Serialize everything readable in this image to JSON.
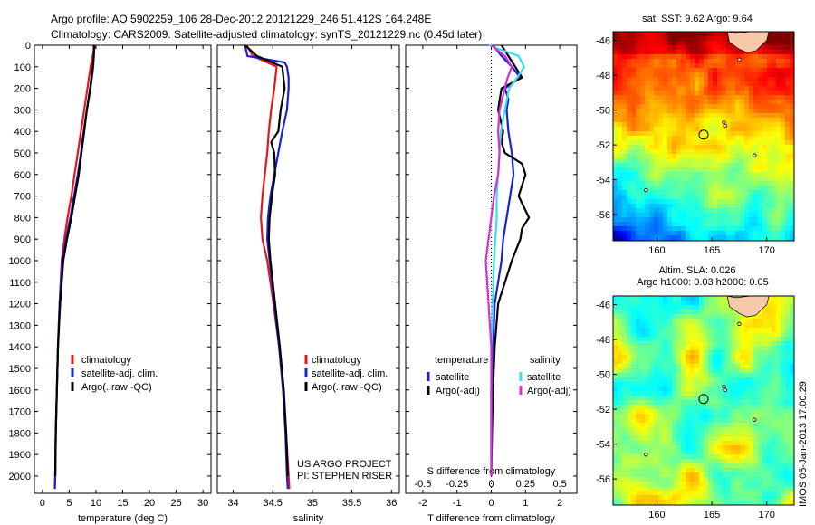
{
  "header": {
    "title_line1": "Argo profile: AO 5902259_106 28-Dec-2012 20121229_246 51.412S 164.248E",
    "title_line2": "Climatology: CARS2009. Satellite-adjusted climatology: synTS_20121229.nc (0.45d later)"
  },
  "colors": {
    "climatology": "#e8141b",
    "satellite": "#1b22cf",
    "argo": "#000000",
    "salinity_satellite": "#33e0e8",
    "salinity_argo": "#d62fd6"
  },
  "chart_data": [
    {
      "type": "line",
      "name": "temperature-profile",
      "xlabel": "temperature (deg C)",
      "ylabel": "",
      "xlim": [
        -1.5,
        31.5
      ],
      "ylim": [
        2080,
        0
      ],
      "xticks": [
        0,
        5,
        10,
        15,
        20,
        25,
        30
      ],
      "yticks": [
        0,
        100,
        200,
        300,
        400,
        500,
        600,
        700,
        800,
        900,
        1000,
        1100,
        1200,
        1300,
        1400,
        1500,
        1600,
        1700,
        1800,
        1900,
        2000
      ],
      "legend": [
        "climatology",
        "satellite-adj. clim.",
        "Argo(..raw -QC)"
      ],
      "series": [
        {
          "name": "climatology",
          "color_key": "climatology",
          "y": [
            0,
            100,
            200,
            300,
            400,
            500,
            600,
            700,
            800,
            900,
            1000,
            1200,
            1400,
            1600,
            1800,
            2000,
            2060
          ],
          "x": [
            9.8,
            9.0,
            8.4,
            7.8,
            7.2,
            6.6,
            6.0,
            5.4,
            4.7,
            4.1,
            3.6,
            3.2,
            2.9,
            2.7,
            2.5,
            2.4,
            2.3
          ]
        },
        {
          "name": "satellite-adj. clim.",
          "color_key": "satellite",
          "y": [
            0,
            100,
            200,
            300,
            400,
            500,
            600,
            700,
            800,
            900,
            1000,
            1200,
            1400,
            1600,
            1800,
            2000,
            2060
          ],
          "x": [
            9.7,
            9.5,
            9.0,
            8.3,
            7.7,
            7.2,
            6.6,
            5.9,
            5.2,
            4.4,
            3.7,
            3.2,
            2.9,
            2.7,
            2.5,
            2.4,
            2.3
          ]
        },
        {
          "name": "Argo(..raw -QC)",
          "color_key": "argo",
          "y": [
            0,
            50,
            100,
            200,
            300,
            400,
            500,
            600,
            700,
            800,
            900,
            1000,
            1200,
            1400,
            1600,
            1800,
            2000
          ],
          "x": [
            9.6,
            9.6,
            9.4,
            8.9,
            8.3,
            7.8,
            7.3,
            6.8,
            6.1,
            5.4,
            4.6,
            3.9,
            3.3,
            2.9,
            2.7,
            2.5,
            2.4
          ]
        }
      ]
    },
    {
      "type": "line",
      "name": "salinity-profile",
      "xlabel": "salinity",
      "ylabel": "",
      "xlim": [
        33.8,
        36.1
      ],
      "ylim": [
        2080,
        0
      ],
      "xticks": [
        34,
        34.5,
        35,
        35.5,
        36
      ],
      "legend": [
        "climatology",
        "satellite-adj. clim.",
        "Argo(..raw -QC)"
      ],
      "annotation": [
        "US ARGO PROJECT",
        "PI: STEPHEN RISER"
      ],
      "series": [
        {
          "name": "climatology",
          "color_key": "climatology",
          "y": [
            0,
            50,
            100,
            200,
            300,
            400,
            500,
            600,
            700,
            800,
            900,
            1000,
            1200,
            1400,
            1600,
            1800,
            2000,
            2060
          ],
          "x": [
            34.17,
            34.25,
            34.55,
            34.52,
            34.48,
            34.45,
            34.43,
            34.4,
            34.37,
            34.35,
            34.37,
            34.43,
            34.51,
            34.58,
            34.63,
            34.67,
            34.7,
            34.71
          ]
        },
        {
          "name": "satellite-adj. clim.",
          "color_key": "satellite",
          "y": [
            0,
            50,
            80,
            100,
            150,
            200,
            300,
            400,
            500,
            600,
            700,
            800,
            900,
            1000,
            1200,
            1400,
            1600,
            1800,
            2000,
            2060
          ],
          "x": [
            34.15,
            34.18,
            34.65,
            34.68,
            34.7,
            34.7,
            34.68,
            34.62,
            34.57,
            34.52,
            34.47,
            34.44,
            34.43,
            34.46,
            34.52,
            34.58,
            34.63,
            34.66,
            34.68,
            34.69
          ]
        },
        {
          "name": "Argo(..raw -QC)",
          "color_key": "argo",
          "y": [
            0,
            50,
            100,
            200,
            300,
            400,
            450,
            500,
            600,
            700,
            800,
            900,
            1000,
            1200,
            1400,
            1600,
            1800,
            2000
          ],
          "x": [
            34.15,
            34.3,
            34.62,
            34.65,
            34.6,
            34.57,
            34.48,
            34.52,
            34.53,
            34.49,
            34.46,
            34.45,
            34.47,
            34.53,
            34.59,
            34.64,
            34.67,
            34.69
          ]
        }
      ]
    },
    {
      "type": "line",
      "name": "difference-profile",
      "xlabel": "T difference from climatology",
      "x2label": "S difference from climatology",
      "xlim": [
        -2.5,
        2.5
      ],
      "ylim": [
        2080,
        0
      ],
      "xticks": [
        -2,
        -1,
        0,
        1,
        2
      ],
      "x2ticks": [
        -0.5,
        -0.25,
        0,
        0.25,
        0.5
      ],
      "legend_temperature": {
        "heading": "temperature",
        "items": [
          "satellite",
          "Argo(-adj)"
        ]
      },
      "legend_salinity": {
        "heading": "salinity",
        "items": [
          "satellite",
          "Argo(-adj)"
        ]
      },
      "series": [
        {
          "name": "temperature satellite",
          "color_key": "satellite",
          "y": [
            0,
            50,
            100,
            150,
            200,
            250,
            300,
            400,
            500,
            600,
            700,
            800,
            900,
            1000,
            1200,
            1400,
            1600,
            1800,
            2000
          ],
          "x": [
            0.05,
            0.3,
            0.6,
            0.85,
            0.4,
            0.5,
            0.45,
            0.5,
            0.6,
            0.65,
            0.55,
            0.45,
            0.35,
            0.3,
            0.1,
            0.05,
            0.0,
            0.0,
            0.0
          ]
        },
        {
          "name": "temperature Argo(-adj)",
          "color_key": "argo",
          "y": [
            0,
            50,
            100,
            150,
            200,
            300,
            400,
            450,
            500,
            550,
            600,
            700,
            800,
            850,
            900,
            1000,
            1100,
            1200,
            1300,
            1400,
            1600,
            1800,
            2000
          ],
          "x": [
            0.3,
            0.5,
            0.7,
            0.9,
            0.3,
            0.2,
            0.35,
            0.3,
            0.4,
            0.9,
            1.0,
            0.8,
            1.1,
            0.9,
            0.85,
            0.6,
            0.4,
            0.2,
            0.15,
            0.1,
            0.05,
            0.02,
            0.0
          ]
        },
        {
          "name": "salinity satellite",
          "color_key": "salinity_satellite",
          "y": [
            0,
            50,
            100,
            150,
            200,
            300,
            400,
            500,
            600,
            700,
            800,
            900,
            1000,
            1200,
            1400,
            1600,
            1800,
            2000
          ],
          "x": [
            -0.02,
            0.2,
            0.24,
            0.19,
            0.13,
            0.1,
            0.07,
            0.06,
            0.05,
            0.04,
            0.04,
            0.03,
            0.02,
            0.01,
            0.0,
            0.0,
            0.0,
            0.0
          ]
        },
        {
          "name": "salinity Argo(-adj)",
          "color_key": "salinity_argo",
          "y": [
            0,
            50,
            100,
            150,
            200,
            300,
            400,
            500,
            600,
            700,
            800,
            900,
            1000,
            1100,
            1200,
            1300,
            1400,
            1600,
            1800,
            2000
          ],
          "x": [
            0.0,
            0.1,
            0.15,
            0.12,
            0.1,
            0.06,
            0.05,
            0.06,
            0.05,
            0.02,
            0.0,
            -0.02,
            -0.04,
            -0.03,
            -0.02,
            -0.01,
            0.0,
            0.0,
            0.0,
            0.0
          ]
        }
      ]
    },
    {
      "type": "heatmap",
      "name": "sst-map",
      "title": "sat. SST: 9.62 Argo: 9.64",
      "xlim": [
        156,
        172.5
      ],
      "ylim": [
        -57.5,
        -45.5
      ],
      "xticks": [
        160,
        165,
        170
      ],
      "yticks": [
        -46,
        -48,
        -50,
        -52,
        -54,
        -56
      ],
      "marker": {
        "lon": 164.248,
        "lat": -51.412
      }
    },
    {
      "type": "heatmap",
      "name": "sla-map",
      "title_line1": "Altim. SLA: 0.026",
      "title_line2": "Argo h1000: 0.03 h2000: 0.05",
      "xlim": [
        156,
        172.5
      ],
      "ylim": [
        -57.5,
        -45.5
      ],
      "xticks": [
        160,
        165,
        170
      ],
      "yticks": [
        -46,
        -48,
        -50,
        -52,
        -54,
        -56
      ],
      "marker": {
        "lon": 164.248,
        "lat": -51.412
      }
    }
  ],
  "footer": {
    "stamp": "IMOS 05-Jan-2013 17:00:29"
  }
}
